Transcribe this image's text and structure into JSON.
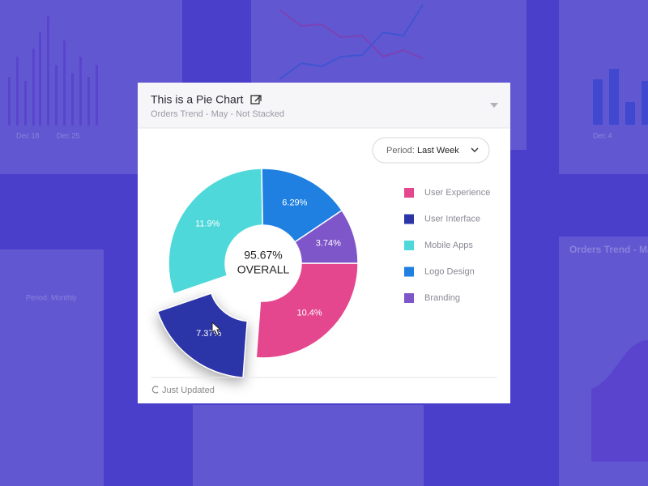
{
  "chart_data": {
    "type": "pie",
    "title": "This is a Pie Chart",
    "subtitle": "Orders Trend - May - Not Stacked",
    "period_label": "Period:",
    "period_value": "Last Week",
    "center_value": "95.67%",
    "center_caption": "OVERALL",
    "footer": "Just Updated",
    "categories": [
      "User Experience",
      "User Interface",
      "Mobile Apps",
      "Logo Design",
      "Branding"
    ],
    "values": [
      10.4,
      7.37,
      11.9,
      6.29,
      3.74
    ],
    "value_labels": [
      "10.4%",
      "7.37%",
      "11.9%",
      "6.29%",
      "3.74%"
    ],
    "colors": [
      "#e5478f",
      "#2b35a8",
      "#4fd8d9",
      "#1f80e2",
      "#7e56c9"
    ],
    "highlighted": "User Interface"
  },
  "background": {
    "labels": [
      "Dec 18",
      "Dec 25",
      "Dec 4",
      "Orders Trend - Ma",
      "Period: Monthly"
    ]
  }
}
